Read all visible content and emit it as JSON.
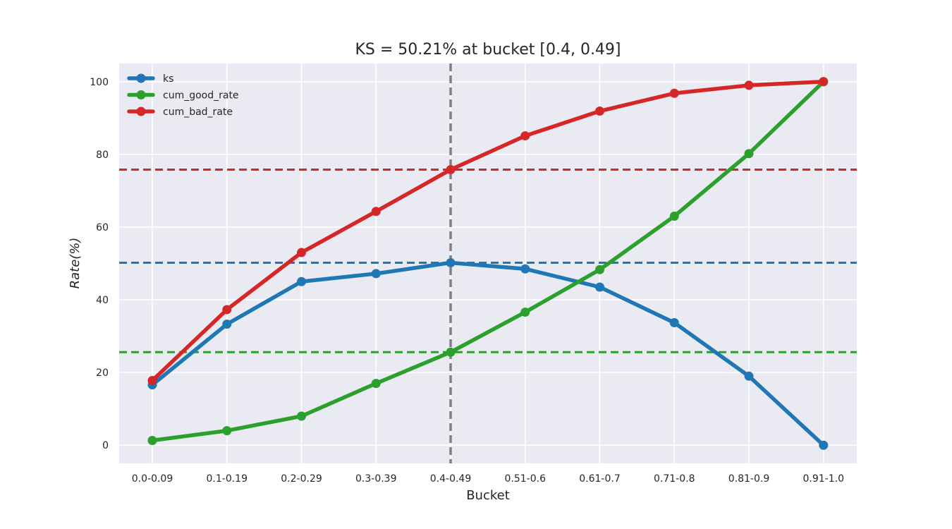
{
  "chart_data": {
    "type": "line",
    "title": "KS =  50.21% at bucket [0.4, 0.49]",
    "xlabel": "Bucket",
    "ylabel": "Rate(%)",
    "categories": [
      "0.0-0.09",
      "0.1-0.19",
      "0.2-0.29",
      "0.3-0.39",
      "0.4-0.49",
      "0.51-0.6",
      "0.61-0.7",
      "0.71-0.8",
      "0.81-0.9",
      "0.91-1.0"
    ],
    "yticks": [
      0,
      20,
      40,
      60,
      80,
      100
    ],
    "ylim": [
      -5,
      105
    ],
    "grid": true,
    "legend_position": "top-left",
    "series": [
      {
        "name": "ks",
        "color": "#1f77b4",
        "values": [
          16.6,
          33.3,
          45.0,
          47.2,
          50.2,
          48.5,
          43.5,
          33.7,
          19.0,
          0.0
        ]
      },
      {
        "name": "cum_good_rate",
        "color": "#2ca02c",
        "values": [
          1.3,
          4.0,
          8.0,
          17.0,
          25.6,
          36.6,
          48.3,
          63.0,
          80.2,
          100.0
        ]
      },
      {
        "name": "cum_bad_rate",
        "color": "#d62728",
        "values": [
          17.8,
          37.3,
          53.0,
          64.3,
          75.8,
          85.1,
          91.9,
          96.8,
          99.0,
          100.0
        ]
      }
    ],
    "reference_lines": [
      {
        "orientation": "horizontal",
        "value": 75.8,
        "color": "#d62728"
      },
      {
        "orientation": "horizontal",
        "value": 50.2,
        "color": "#1f77b4"
      },
      {
        "orientation": "horizontal",
        "value": 25.6,
        "color": "#2ca02c"
      },
      {
        "orientation": "vertical",
        "category": "0.4-0.49",
        "color": "#808080"
      }
    ],
    "plot_background": "#eaeaf2",
    "grid_color": "#ffffff"
  }
}
